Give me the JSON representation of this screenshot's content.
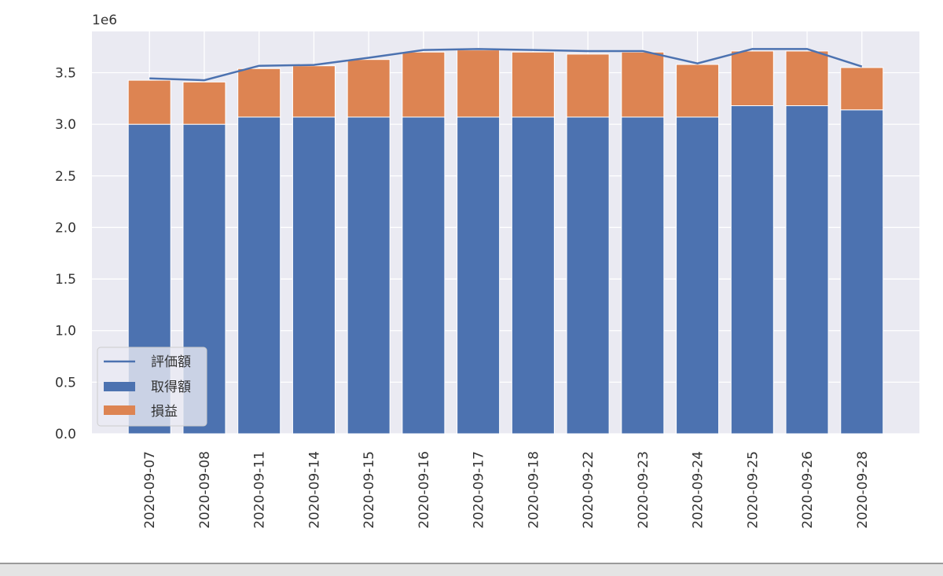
{
  "chart_data": {
    "type": "bar",
    "stacked": true,
    "title": "",
    "xlabel": "",
    "ylabel": "",
    "y_offset_label": "1e6",
    "categories": [
      "2020-09-07",
      "2020-09-08",
      "2020-09-11",
      "2020-09-14",
      "2020-09-15",
      "2020-09-16",
      "2020-09-17",
      "2020-09-18",
      "2020-09-22",
      "2020-09-23",
      "2020-09-24",
      "2020-09-25",
      "2020-09-26",
      "2020-09-28"
    ],
    "series": [
      {
        "name": "取得額",
        "kind": "bar",
        "color": "#4c72b0",
        "values": [
          3000000,
          3000000,
          3070000,
          3070000,
          3070000,
          3070000,
          3070000,
          3070000,
          3070000,
          3070000,
          3070000,
          3180000,
          3180000,
          3140000
        ]
      },
      {
        "name": "損益",
        "kind": "bar",
        "color": "#dd8452",
        "values": [
          427000,
          410000,
          470000,
          497000,
          558000,
          630000,
          650000,
          630000,
          610000,
          630000,
          510000,
          530000,
          530000,
          410000
        ]
      },
      {
        "name": "評価額",
        "kind": "line",
        "color": "#4c72b0",
        "values": [
          3445000,
          3427000,
          3567000,
          3575000,
          3645000,
          3720000,
          3730000,
          3720000,
          3710000,
          3710000,
          3590000,
          3730000,
          3730000,
          3560000
        ]
      }
    ],
    "yticks": [
      0,
      0.5,
      1.0,
      1.5,
      2.0,
      2.5,
      3.0,
      3.5
    ],
    "ytick_labels": [
      "0.0",
      "0.5",
      "1.0",
      "1.5",
      "2.0",
      "2.5",
      "3.0",
      "3.5"
    ],
    "ylim": [
      0,
      3900000
    ],
    "grid": true,
    "legend_placement": "lower-left",
    "background": "#eaeaf2"
  }
}
